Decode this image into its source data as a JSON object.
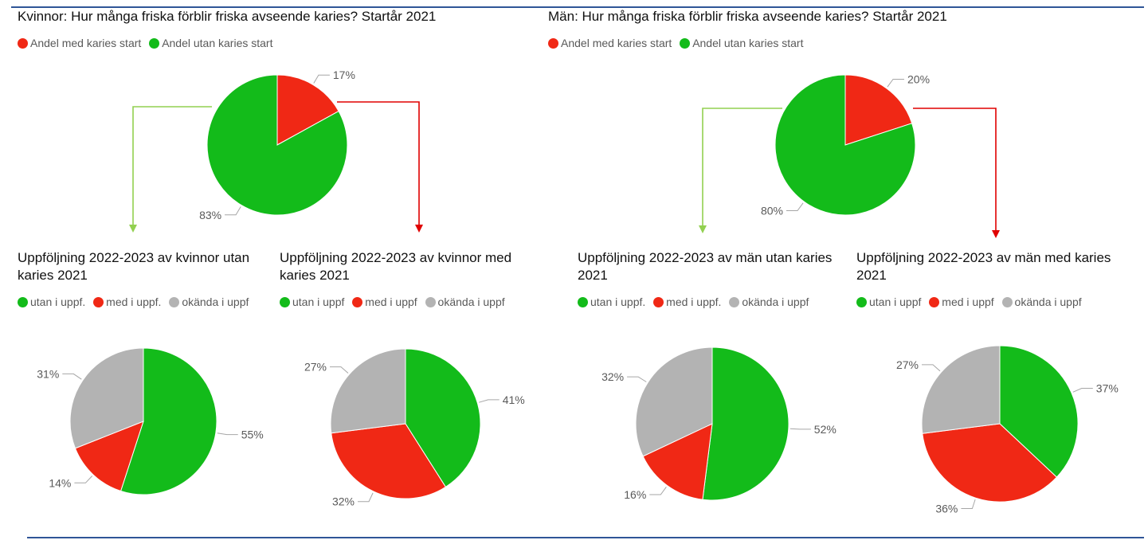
{
  "colors": {
    "red": "#f02815",
    "green": "#13bb1a",
    "gray": "#b3b3b3",
    "rule": "#2f5597",
    "arrow_green": "#92d050",
    "arrow_red": "#e00000"
  },
  "chart_data": [
    {
      "id": "kvinnor-start",
      "type": "pie",
      "title": "Kvinnor: Hur många friska förblir friska avseende karies? Startår 2021",
      "legend": [
        "Andel med karies start",
        "Andel utan karies start"
      ],
      "slices": [
        {
          "label": "Andel med karies start",
          "value": 17,
          "text": "17%",
          "color": "red"
        },
        {
          "label": "Andel utan karies start",
          "value": 83,
          "text": "83%",
          "color": "green"
        }
      ]
    },
    {
      "id": "man-start",
      "type": "pie",
      "title": "Män: Hur många friska förblir friska avseende karies? Startår 2021",
      "legend": [
        "Andel med karies start",
        "Andel utan karies start"
      ],
      "slices": [
        {
          "label": "Andel med karies start",
          "value": 20,
          "text": "20%",
          "color": "red"
        },
        {
          "label": "Andel utan karies start",
          "value": 80,
          "text": "80%",
          "color": "green"
        }
      ]
    },
    {
      "id": "kvinnor-utan",
      "type": "pie",
      "title": "Uppföljning 2022-2023 av kvinnor utan karies 2021",
      "legend": [
        "utan i uppf.",
        "med i uppf.",
        "okända i uppf"
      ],
      "slices": [
        {
          "label": "utan i uppf.",
          "value": 55,
          "text": "55%",
          "color": "green"
        },
        {
          "label": "med i uppf.",
          "value": 14,
          "text": "14%",
          "color": "red"
        },
        {
          "label": "okända i uppf",
          "value": 31,
          "text": "31%",
          "color": "gray"
        }
      ]
    },
    {
      "id": "kvinnor-med",
      "type": "pie",
      "title": "Uppföljning 2022-2023 av kvinnor med karies 2021",
      "legend": [
        "utan i uppf",
        "med i uppf",
        "okända i uppf"
      ],
      "slices": [
        {
          "label": "utan i uppf",
          "value": 41,
          "text": "41%",
          "color": "green"
        },
        {
          "label": "med i uppf",
          "value": 32,
          "text": "32%",
          "color": "red"
        },
        {
          "label": "okända i uppf",
          "value": 27,
          "text": "27%",
          "color": "gray"
        }
      ]
    },
    {
      "id": "man-utan",
      "type": "pie",
      "title": "Uppföljning 2022-2023 av män utan karies 2021",
      "legend": [
        "utan i uppf.",
        "med i uppf.",
        "okända i uppf"
      ],
      "slices": [
        {
          "label": "utan i uppf.",
          "value": 52,
          "text": "52%",
          "color": "green"
        },
        {
          "label": "med i uppf.",
          "value": 16,
          "text": "16%",
          "color": "red"
        },
        {
          "label": "okända i uppf",
          "value": 32,
          "text": "32%",
          "color": "gray"
        }
      ]
    },
    {
      "id": "man-med",
      "type": "pie",
      "title": "Uppföljning 2022-2023 av män med karies 2021",
      "legend": [
        "utan i uppf",
        "med i uppf",
        "okända i uppf"
      ],
      "slices": [
        {
          "label": "utan i uppf",
          "value": 37,
          "text": "37%",
          "color": "green"
        },
        {
          "label": "med i uppf",
          "value": 36,
          "text": "36%",
          "color": "red"
        },
        {
          "label": "okända i uppf",
          "value": 27,
          "text": "27%",
          "color": "gray"
        }
      ]
    }
  ]
}
